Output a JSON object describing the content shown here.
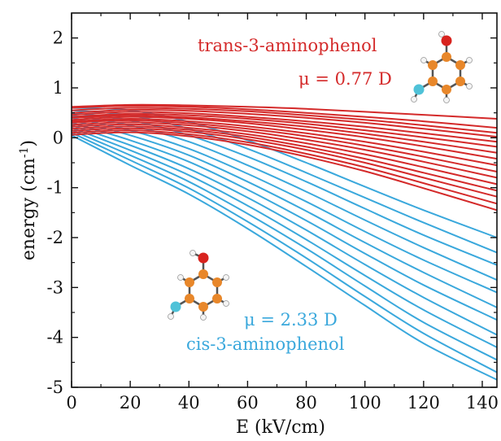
{
  "chart_data": {
    "type": "line",
    "xlabel": "E (kV/cm)",
    "ylabel_base": "energy (cm",
    "ylabel_sup": "-1",
    "ylabel_close": ")",
    "xlim": [
      0,
      145
    ],
    "ylim": [
      -5,
      2.5
    ],
    "x_ticks": [
      0,
      20,
      40,
      60,
      80,
      100,
      120,
      140
    ],
    "y_ticks": [
      2,
      1,
      0,
      -1,
      -2,
      -3,
      -4,
      -5
    ],
    "grid": false,
    "colors": {
      "trans": "#d42a2a",
      "cis": "#3aa8dc"
    },
    "x": [
      0,
      20,
      40,
      60,
      80,
      100,
      120,
      145
    ],
    "series": [
      {
        "group": "trans",
        "values": [
          0.62,
          0.66,
          0.65,
          0.62,
          0.58,
          0.52,
          0.46,
          0.38
        ]
      },
      {
        "group": "trans",
        "values": [
          0.6,
          0.64,
          0.62,
          0.57,
          0.5,
          0.42,
          0.33,
          0.2
        ]
      },
      {
        "group": "trans",
        "values": [
          0.55,
          0.6,
          0.58,
          0.53,
          0.45,
          0.36,
          0.25,
          0.1
        ]
      },
      {
        "group": "trans",
        "values": [
          0.5,
          0.56,
          0.54,
          0.48,
          0.4,
          0.3,
          0.18,
          0.02
        ]
      },
      {
        "group": "trans",
        "values": [
          0.46,
          0.52,
          0.49,
          0.42,
          0.33,
          0.22,
          0.09,
          -0.08
        ]
      },
      {
        "group": "trans",
        "values": [
          0.42,
          0.48,
          0.45,
          0.38,
          0.28,
          0.15,
          0.01,
          -0.18
        ]
      },
      {
        "group": "trans",
        "values": [
          0.4,
          0.45,
          0.41,
          0.33,
          0.22,
          0.08,
          -0.08,
          -0.3
        ]
      },
      {
        "group": "trans",
        "values": [
          0.36,
          0.42,
          0.38,
          0.29,
          0.16,
          0.01,
          -0.17,
          -0.42
        ]
      },
      {
        "group": "trans",
        "values": [
          0.33,
          0.38,
          0.33,
          0.23,
          0.09,
          -0.08,
          -0.28,
          -0.55
        ]
      },
      {
        "group": "trans",
        "values": [
          0.3,
          0.35,
          0.29,
          0.18,
          0.03,
          -0.16,
          -0.38,
          -0.68
        ]
      },
      {
        "group": "trans",
        "values": [
          0.26,
          0.31,
          0.25,
          0.13,
          -0.04,
          -0.24,
          -0.48,
          -0.8
        ]
      },
      {
        "group": "trans",
        "values": [
          0.22,
          0.27,
          0.2,
          0.07,
          -0.11,
          -0.33,
          -0.59,
          -0.93
        ]
      },
      {
        "group": "trans",
        "values": [
          0.18,
          0.23,
          0.16,
          0.02,
          -0.18,
          -0.42,
          -0.7,
          -1.06
        ]
      },
      {
        "group": "trans",
        "values": [
          0.14,
          0.19,
          0.12,
          -0.03,
          -0.24,
          -0.5,
          -0.8,
          -1.18
        ]
      },
      {
        "group": "trans",
        "values": [
          0.1,
          0.15,
          0.07,
          -0.09,
          -0.32,
          -0.59,
          -0.91,
          -1.32
        ]
      },
      {
        "group": "trans",
        "values": [
          0.06,
          0.11,
          0.03,
          -0.14,
          -0.38,
          -0.67,
          -1.01,
          -1.45
        ]
      },
      {
        "group": "cis",
        "values": [
          0.6,
          0.55,
          0.32,
          -0.05,
          -0.5,
          -0.98,
          -1.45,
          -2.0
        ]
      },
      {
        "group": "cis",
        "values": [
          0.55,
          0.45,
          0.18,
          -0.22,
          -0.7,
          -1.2,
          -1.7,
          -2.3
        ]
      },
      {
        "group": "cis",
        "values": [
          0.5,
          0.35,
          0.05,
          -0.38,
          -0.88,
          -1.42,
          -1.95,
          -2.55
        ]
      },
      {
        "group": "cis",
        "values": [
          0.45,
          0.25,
          -0.08,
          -0.55,
          -1.08,
          -1.65,
          -2.2,
          -2.85
        ]
      },
      {
        "group": "cis",
        "values": [
          0.4,
          0.15,
          -0.22,
          -0.72,
          -1.28,
          -1.88,
          -2.45,
          -3.1
        ]
      },
      {
        "group": "cis",
        "values": [
          0.35,
          0.05,
          -0.35,
          -0.88,
          -1.47,
          -2.1,
          -2.7,
          -3.4
        ]
      },
      {
        "group": "cis",
        "values": [
          0.3,
          -0.05,
          -0.48,
          -1.04,
          -1.66,
          -2.32,
          -2.95,
          -3.65
        ]
      },
      {
        "group": "cis",
        "values": [
          0.25,
          -0.15,
          -0.62,
          -1.2,
          -1.85,
          -2.54,
          -3.2,
          -3.95
        ]
      },
      {
        "group": "cis",
        "values": [
          0.2,
          -0.25,
          -0.75,
          -1.36,
          -2.04,
          -2.76,
          -3.45,
          -4.2
        ]
      },
      {
        "group": "cis",
        "values": [
          0.15,
          -0.35,
          -0.88,
          -1.52,
          -2.22,
          -2.97,
          -3.7,
          -4.45
        ]
      },
      {
        "group": "cis",
        "values": [
          0.1,
          -0.45,
          -1.01,
          -1.68,
          -2.41,
          -3.18,
          -3.92,
          -4.7
        ]
      },
      {
        "group": "cis",
        "values": [
          0.05,
          -0.55,
          -1.13,
          -1.82,
          -2.58,
          -3.36,
          -4.12,
          -4.85
        ]
      }
    ],
    "annotations": {
      "trans_name": "trans-3-aminophenol",
      "trans_mu": "μ = 0.77 D",
      "cis_mu": "μ = 2.33 D",
      "cis_name": "cis-3-aminophenol"
    }
  }
}
